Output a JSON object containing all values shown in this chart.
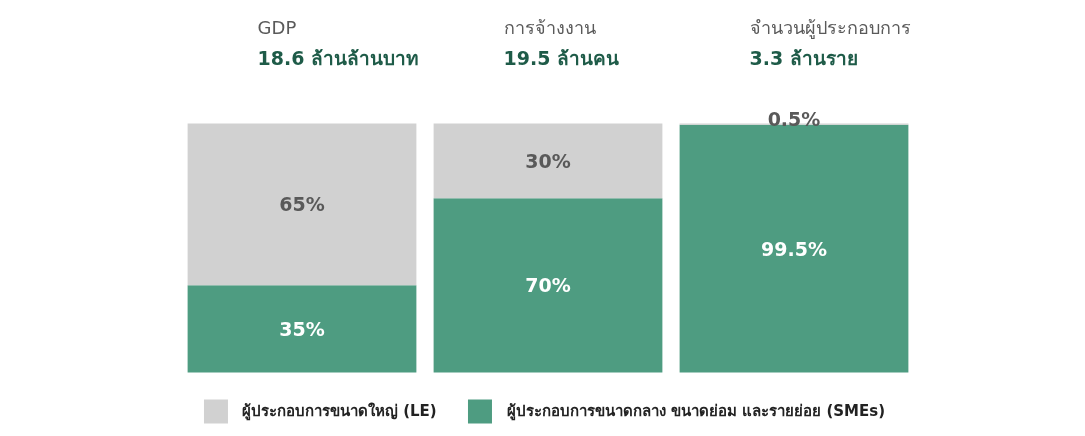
{
  "chart_data": {
    "type": "bar",
    "stacked": true,
    "tick_labels": "x",
    "legend": "bottom",
    "categories": [
      "GDP\n18.6 ล้านล้านบาท",
      "การจ้างงาน\n19.5 ล้านคน",
      "จำนวนผู้ประกอบการ\n3.3 ล้านราย"
    ],
    "series": [
      {
        "name": "ผู้ประกอบการขนาดกลาง ขนาดย่อม และรายย่อย (SMEs)",
        "color": "#4e9c81",
        "values": [
          35,
          70,
          99.5
        ],
        "value_labels": [
          "35%",
          "70%",
          "99.5%"
        ]
      },
      {
        "name": "ผู้ประกอบการขนาดใหญ่ (LE)",
        "color": "#d1d1d1",
        "values": [
          65,
          30,
          0.5
        ],
        "value_labels": [
          "65%",
          "30%",
          "0.5%"
        ]
      }
    ]
  }
}
